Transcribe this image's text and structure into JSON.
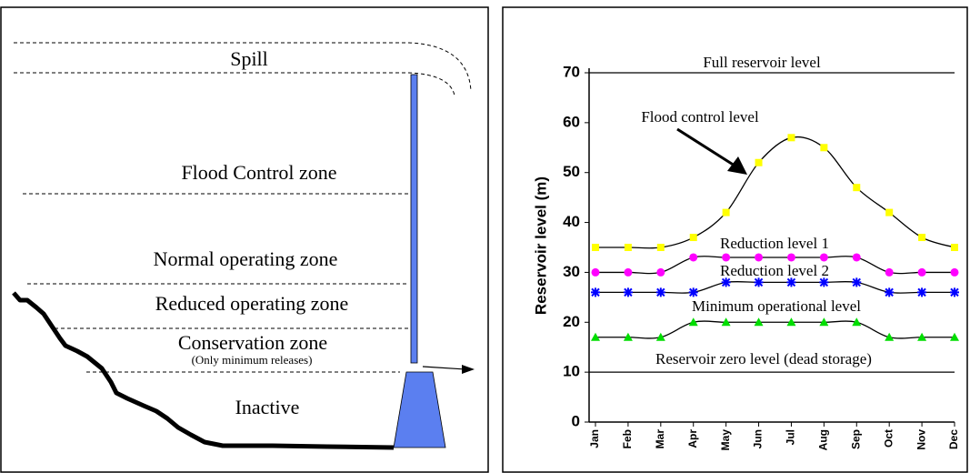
{
  "diagram": {
    "zones": [
      "Spill",
      "Flood Control zone",
      "Normal operating zone",
      "Reduced operating zone",
      "Conservation zone",
      "(Only minimum releases)",
      "Inactive"
    ]
  },
  "chart_data": {
    "type": "line",
    "y_label": "Reservoir level (m)",
    "categories": [
      "Jan",
      "Feb",
      "Mar",
      "Apr",
      "May",
      "Jun",
      "Jul",
      "Aug",
      "Sep",
      "Oct",
      "Nov",
      "Dec"
    ],
    "series": [
      {
        "name": "Flood control level",
        "color": "#ffff00",
        "marker": "square",
        "values": [
          35,
          35,
          35,
          37,
          42,
          52,
          57,
          55,
          47,
          42,
          37,
          35
        ]
      },
      {
        "name": "Reduction level 1",
        "color": "#ff00ff",
        "marker": "circle",
        "values": [
          30,
          30,
          30,
          33,
          33,
          33,
          33,
          33,
          33,
          30,
          30,
          30
        ]
      },
      {
        "name": "Reduction level 2",
        "color": "#0000ff",
        "marker": "star",
        "values": [
          26,
          26,
          26,
          26,
          28,
          28,
          28,
          28,
          28,
          26,
          26,
          26
        ]
      },
      {
        "name": "Minimum operational level",
        "color": "#00dd00",
        "marker": "triangle",
        "values": [
          17,
          17,
          17,
          20,
          20,
          20,
          20,
          20,
          20,
          17,
          17,
          17
        ]
      }
    ],
    "reference_lines": [
      {
        "label": "Full reservoir level",
        "value": 70
      },
      {
        "label": "Reservoir zero level (dead storage)",
        "value": 10
      }
    ],
    "ylim": [
      0,
      70
    ],
    "yticks": [
      0,
      10,
      20,
      30,
      40,
      50,
      60,
      70
    ]
  }
}
